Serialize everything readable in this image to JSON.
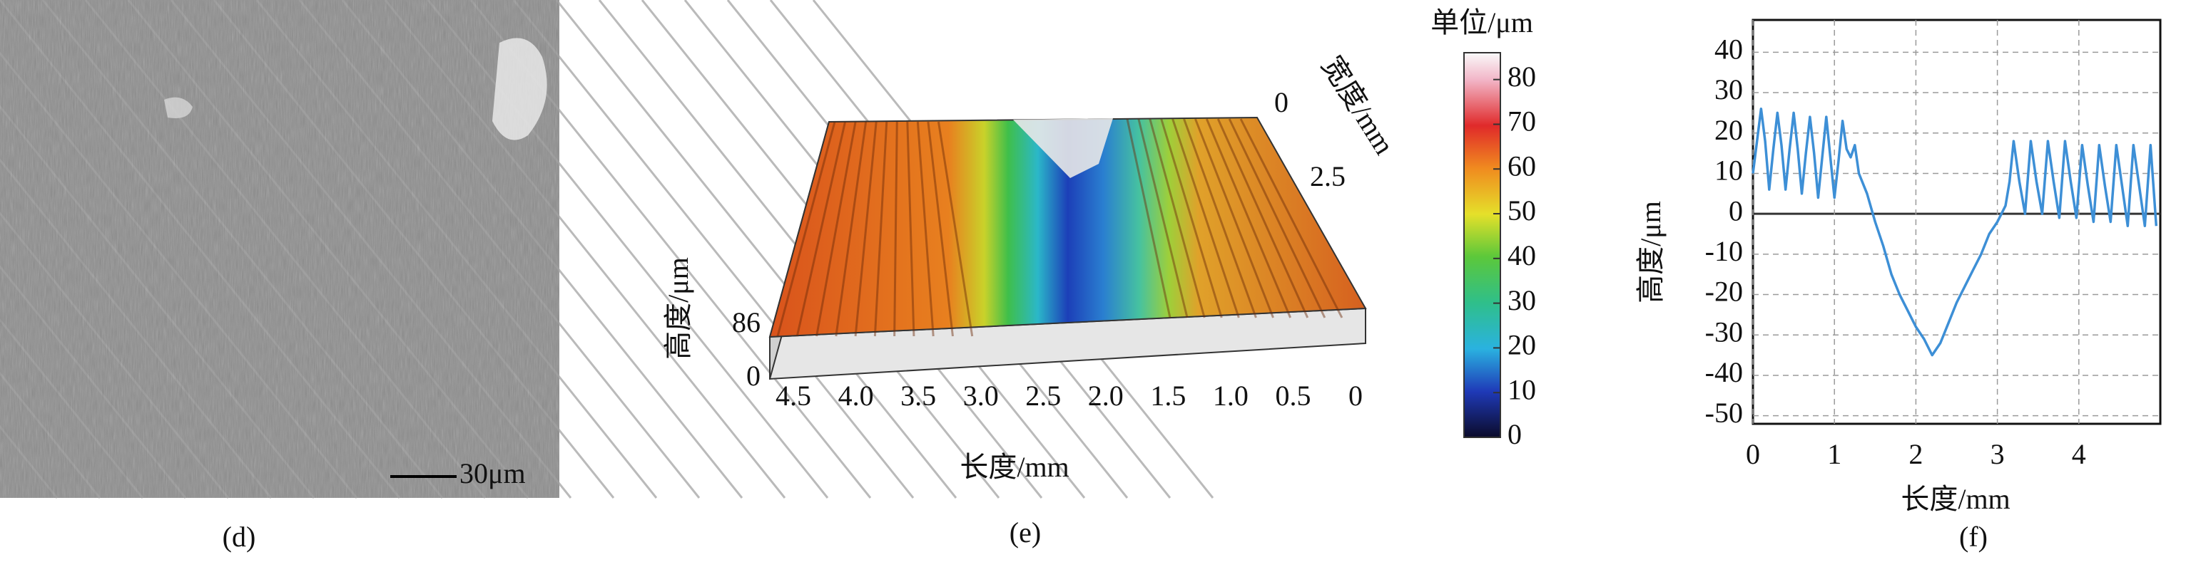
{
  "panels": {
    "d": {
      "label": "(d)",
      "scale_bar": "30μm"
    },
    "e": {
      "label": "(e)",
      "length_label": "长度/mm",
      "length_ticks": [
        4.5,
        {
          "value": 4,
          "label": "4.0"
        },
        3.5,
        {
          "value": 3,
          "label": "3.0"
        },
        2.5,
        {
          "value": 2,
          "label": "2.0"
        },
        1.5,
        {
          "value": 1,
          "label": "1.0"
        },
        0.5,
        0
      ],
      "width_label": "宽度/mm",
      "width_ticks": [
        0,
        2.5
      ],
      "height_label": "高度/μm",
      "height_ticks": [
        86,
        0
      ],
      "colorbar": {
        "title": "单位/μm",
        "lim": [
          0,
          86
        ],
        "ticks": [
          0,
          10,
          20,
          30,
          40,
          50,
          60,
          70,
          80
        ]
      }
    },
    "f": {
      "label": "(f)"
    }
  },
  "chart_data": {
    "type": "line",
    "xlabel": "长度/mm",
    "ylabel": "高度/μm",
    "xlim": [
      0,
      5
    ],
    "ylim": [
      -52,
      48
    ],
    "xticks": [
      0,
      1,
      2,
      3,
      4
    ],
    "yticks": [
      -50,
      -40,
      -30,
      -20,
      -10,
      0,
      10,
      20,
      30,
      40
    ],
    "grid": true,
    "series": [
      {
        "color": "#3d8fd6",
        "x": [
          0,
          0.05,
          0.1,
          0.15,
          0.2,
          0.25,
          0.3,
          0.35,
          0.4,
          0.45,
          0.5,
          0.55,
          0.6,
          0.65,
          0.7,
          0.75,
          0.8,
          0.85,
          0.9,
          0.95,
          1.0,
          1.05,
          1.1,
          1.15,
          1.2,
          1.25,
          1.3,
          1.4,
          1.5,
          1.6,
          1.7,
          1.8,
          1.9,
          2.0,
          2.1,
          2.2,
          2.3,
          2.4,
          2.5,
          2.6,
          2.7,
          2.8,
          2.9,
          3.0,
          3.1,
          3.15,
          3.2,
          3.27,
          3.34,
          3.41,
          3.48,
          3.55,
          3.62,
          3.69,
          3.76,
          3.83,
          3.9,
          3.97,
          4.04,
          4.11,
          4.18,
          4.25,
          4.32,
          4.39,
          4.46,
          4.53,
          4.6,
          4.67,
          4.74,
          4.81,
          4.88,
          4.95
        ],
        "values": [
          10,
          18,
          26,
          18,
          6,
          16,
          25,
          17,
          6,
          16,
          25,
          16,
          5,
          15,
          24,
          15,
          4,
          14,
          24,
          14,
          4,
          13,
          23,
          16,
          14,
          17,
          10,
          5,
          -2,
          -8,
          -15,
          -20,
          -24,
          -28,
          -31,
          -35,
          -32,
          -27,
          -22,
          -18,
          -14,
          -10,
          -5,
          -2,
          2,
          8,
          18,
          8,
          0,
          18,
          8,
          0,
          18,
          8,
          -1,
          18,
          8,
          -1,
          17,
          7,
          -2,
          17,
          7,
          -2,
          17,
          7,
          -3,
          17,
          7,
          -3,
          17,
          -3
        ]
      }
    ]
  }
}
